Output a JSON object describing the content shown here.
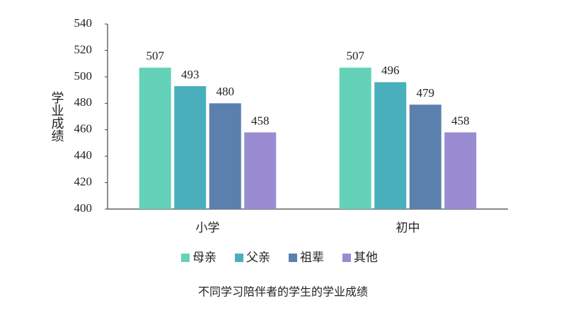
{
  "chart_data": {
    "type": "bar",
    "title": "不同学习陪伴者的学生的学业成绩",
    "y_label": "学业成绩",
    "categories": [
      "小学",
      "初中"
    ],
    "series": [
      {
        "name": "母亲",
        "color": "#63d2b9",
        "values": [
          507,
          507
        ]
      },
      {
        "name": "父亲",
        "color": "#4aafbd",
        "values": [
          493,
          496
        ]
      },
      {
        "name": "祖辈",
        "color": "#5b80ae",
        "values": [
          480,
          479
        ]
      },
      {
        "name": "其他",
        "color": "#998cd2",
        "values": [
          458,
          458
        ]
      }
    ],
    "ylim": [
      400,
      540
    ],
    "yticks": [
      400,
      420,
      440,
      460,
      480,
      500,
      520,
      540
    ],
    "grid": false,
    "legend": "bottom"
  }
}
